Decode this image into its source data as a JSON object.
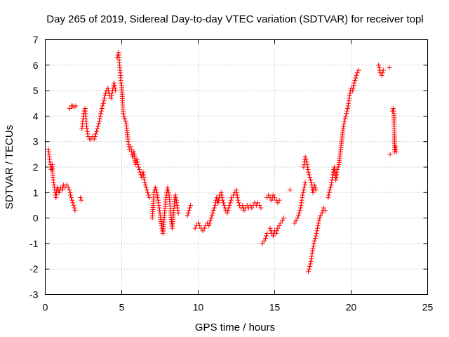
{
  "chart_data": {
    "type": "scatter",
    "title": "Day 265 of 2019, Sidereal Day-to-day VTEC variation (SDTVAR) for receiver topl",
    "xlabel": "GPS time / hours",
    "ylabel": "SDTVAR / TECUs",
    "xlim": [
      0,
      25
    ],
    "ylim": [
      -3,
      7
    ],
    "xticks": [
      0,
      5,
      10,
      15,
      20,
      25
    ],
    "yticks": [
      -3,
      -2,
      -1,
      0,
      1,
      2,
      3,
      4,
      5,
      6,
      7
    ],
    "grid": true,
    "marker": "+",
    "series": [
      {
        "name": "SDTVAR",
        "color": "#ff0000",
        "segments": [
          [
            [
              0.2,
              2.7
            ],
            [
              0.25,
              2.5
            ],
            [
              0.3,
              2.2
            ],
            [
              0.35,
              2.0
            ],
            [
              0.4,
              1.9
            ],
            [
              0.45,
              2.1
            ],
            [
              0.5,
              1.6
            ],
            [
              0.55,
              1.4
            ],
            [
              0.6,
              1.2
            ],
            [
              0.65,
              1.0
            ],
            [
              0.7,
              0.8
            ],
            [
              0.75,
              1.1
            ],
            [
              0.8,
              1.2
            ],
            [
              0.9,
              1.0
            ],
            [
              1.0,
              1.2
            ],
            [
              1.1,
              1.1
            ],
            [
              1.2,
              1.3
            ],
            [
              1.3,
              1.2
            ],
            [
              1.4,
              1.3
            ],
            [
              1.5,
              1.2
            ]
          ],
          [
            [
              1.6,
              1.1
            ],
            [
              1.65,
              0.9
            ],
            [
              1.7,
              0.8
            ],
            [
              1.75,
              0.7
            ],
            [
              1.8,
              0.6
            ],
            [
              1.85,
              0.5
            ],
            [
              1.9,
              0.4
            ],
            [
              1.95,
              0.3
            ]
          ],
          [
            [
              1.6,
              4.3
            ],
            [
              1.7,
              4.4
            ],
            [
              1.8,
              4.4
            ],
            [
              1.9,
              4.35
            ],
            [
              2.0,
              4.4
            ]
          ],
          [
            [
              2.3,
              0.8
            ],
            [
              2.35,
              0.7
            ]
          ],
          [
            [
              2.4,
              3.5
            ],
            [
              2.45,
              3.8
            ],
            [
              2.5,
              4.0
            ],
            [
              2.55,
              4.2
            ],
            [
              2.6,
              4.3
            ],
            [
              2.65,
              4.0
            ],
            [
              2.7,
              3.6
            ],
            [
              2.75,
              3.4
            ],
            [
              2.8,
              3.2
            ],
            [
              2.9,
              3.1
            ],
            [
              3.0,
              3.1
            ],
            [
              3.1,
              3.2
            ],
            [
              3.2,
              3.1
            ],
            [
              3.3,
              3.3
            ],
            [
              3.4,
              3.5
            ],
            [
              3.5,
              3.7
            ],
            [
              3.6,
              4.0
            ],
            [
              3.7,
              4.3
            ],
            [
              3.8,
              4.5
            ],
            [
              3.9,
              4.8
            ],
            [
              4.0,
              5.0
            ],
            [
              4.1,
              5.1
            ],
            [
              4.2,
              4.8
            ],
            [
              4.3,
              4.7
            ],
            [
              4.4,
              5.0
            ],
            [
              4.5,
              5.3
            ],
            [
              4.6,
              5.0
            ]
          ],
          [
            [
              4.7,
              6.3
            ],
            [
              4.75,
              6.4
            ],
            [
              4.8,
              6.5
            ],
            [
              4.85,
              6.1
            ],
            [
              4.9,
              5.7
            ],
            [
              4.95,
              5.3
            ],
            [
              5.0,
              5.2
            ],
            [
              5.05,
              4.6
            ],
            [
              5.1,
              4.1
            ],
            [
              5.2,
              3.9
            ],
            [
              5.3,
              3.7
            ],
            [
              5.4,
              3.1
            ],
            [
              5.5,
              2.7
            ],
            [
              5.6,
              2.8
            ],
            [
              5.7,
              2.4
            ],
            [
              5.8,
              2.6
            ],
            [
              5.9,
              2.1
            ],
            [
              6.0,
              2.3
            ],
            [
              6.1,
              2.0
            ],
            [
              6.2,
              1.8
            ],
            [
              6.3,
              1.6
            ],
            [
              6.4,
              1.8
            ],
            [
              6.5,
              1.4
            ],
            [
              6.6,
              1.2
            ],
            [
              6.7,
              1.0
            ],
            [
              6.8,
              0.8
            ]
          ],
          [
            [
              7.0,
              0.0
            ],
            [
              7.1,
              1.0
            ],
            [
              7.2,
              1.2
            ],
            [
              7.3,
              1.0
            ],
            [
              7.4,
              0.6
            ],
            [
              7.5,
              0.2
            ],
            [
              7.6,
              -0.3
            ],
            [
              7.7,
              -0.6
            ],
            [
              7.8,
              0.2
            ],
            [
              7.9,
              0.8
            ],
            [
              8.0,
              1.2
            ],
            [
              8.1,
              0.9
            ],
            [
              8.2,
              0.2
            ],
            [
              8.3,
              -0.4
            ],
            [
              8.4,
              0.3
            ],
            [
              8.5,
              0.9
            ],
            [
              8.6,
              0.6
            ],
            [
              8.7,
              0.2
            ]
          ],
          [
            [
              9.3,
              0.1
            ],
            [
              9.4,
              0.3
            ],
            [
              9.5,
              0.5
            ]
          ],
          [
            [
              9.8,
              -0.4
            ],
            [
              9.9,
              -0.3
            ],
            [
              10.0,
              -0.2
            ],
            [
              10.1,
              -0.3
            ],
            [
              10.2,
              -0.4
            ],
            [
              10.3,
              -0.5
            ],
            [
              10.4,
              -0.4
            ],
            [
              10.5,
              -0.3
            ],
            [
              10.6,
              -0.2
            ],
            [
              10.7,
              -0.3
            ],
            [
              10.8,
              -0.1
            ],
            [
              10.9,
              0.1
            ],
            [
              11.0,
              0.3
            ],
            [
              11.1,
              0.5
            ],
            [
              11.2,
              0.8
            ],
            [
              11.3,
              0.6
            ],
            [
              11.4,
              0.9
            ],
            [
              11.5,
              1.0
            ],
            [
              11.6,
              0.7
            ],
            [
              11.7,
              0.5
            ],
            [
              11.8,
              0.3
            ],
            [
              11.9,
              0.2
            ],
            [
              12.0,
              0.4
            ],
            [
              12.1,
              0.6
            ],
            [
              12.2,
              0.8
            ],
            [
              12.3,
              0.9
            ],
            [
              12.4,
              1.0
            ],
            [
              12.5,
              1.1
            ],
            [
              12.6,
              0.7
            ],
            [
              12.7,
              0.5
            ],
            [
              12.8,
              0.4
            ],
            [
              12.9,
              0.5
            ],
            [
              13.0,
              0.3
            ],
            [
              13.1,
              0.4
            ],
            [
              13.2,
              0.5
            ],
            [
              13.3,
              0.4
            ],
            [
              13.4,
              0.5
            ],
            [
              13.5,
              0.4
            ],
            [
              13.6,
              0.5
            ],
            [
              13.7,
              0.6
            ],
            [
              13.8,
              0.5
            ],
            [
              13.9,
              0.6
            ],
            [
              14.0,
              0.5
            ],
            [
              14.1,
              0.4
            ]
          ],
          [
            [
              14.2,
              -1.0
            ],
            [
              14.3,
              -0.9
            ],
            [
              14.4,
              -0.8
            ],
            [
              14.5,
              -0.6
            ]
          ],
          [
            [
              14.5,
              0.8
            ],
            [
              14.6,
              0.9
            ],
            [
              14.7,
              0.8
            ],
            [
              14.8,
              0.7
            ],
            [
              14.9,
              0.9
            ],
            [
              15.0,
              0.8
            ],
            [
              15.1,
              0.7
            ],
            [
              15.2,
              0.6
            ],
            [
              15.3,
              0.7
            ]
          ],
          [
            [
              14.7,
              -0.4
            ],
            [
              14.8,
              -0.6
            ],
            [
              14.9,
              -0.7
            ],
            [
              15.0,
              -0.5
            ],
            [
              15.1,
              -0.6
            ],
            [
              15.2,
              -0.4
            ],
            [
              15.3,
              -0.3
            ],
            [
              15.4,
              -0.2
            ],
            [
              15.5,
              -0.1
            ],
            [
              15.6,
              0.0
            ]
          ],
          [
            [
              16.0,
              1.1
            ]
          ],
          [
            [
              16.3,
              -0.2
            ],
            [
              16.4,
              -0.1
            ],
            [
              16.5,
              0.0
            ],
            [
              16.6,
              0.2
            ],
            [
              16.7,
              0.4
            ],
            [
              16.8,
              0.8
            ],
            [
              16.9,
              1.1
            ],
            [
              17.0,
              1.4
            ]
          ],
          [
            [
              16.9,
              2.0
            ],
            [
              17.0,
              2.4
            ],
            [
              17.1,
              2.2
            ],
            [
              17.2,
              1.8
            ],
            [
              17.3,
              1.6
            ],
            [
              17.4,
              1.4
            ],
            [
              17.5,
              1.0
            ],
            [
              17.6,
              1.3
            ],
            [
              17.7,
              1.1
            ]
          ],
          [
            [
              17.2,
              -2.1
            ],
            [
              17.3,
              -1.9
            ],
            [
              17.4,
              -1.6
            ],
            [
              17.5,
              -1.2
            ],
            [
              17.6,
              -0.9
            ],
            [
              17.7,
              -0.7
            ],
            [
              17.8,
              -0.4
            ],
            [
              17.9,
              -0.1
            ],
            [
              18.0,
              0.1
            ],
            [
              18.1,
              0.2
            ],
            [
              18.2,
              0.4
            ],
            [
              18.3,
              0.3
            ]
          ],
          [
            [
              18.5,
              0.8
            ],
            [
              18.6,
              1.1
            ],
            [
              18.7,
              1.3
            ],
            [
              18.8,
              1.7
            ],
            [
              18.9,
              2.0
            ],
            [
              19.0,
              1.5
            ],
            [
              19.1,
              1.9
            ],
            [
              19.2,
              2.1
            ],
            [
              19.3,
              2.6
            ],
            [
              19.4,
              3.1
            ],
            [
              19.5,
              3.6
            ],
            [
              19.6,
              3.9
            ],
            [
              19.7,
              4.1
            ],
            [
              19.8,
              4.4
            ],
            [
              19.9,
              4.8
            ],
            [
              20.0,
              5.1
            ],
            [
              20.1,
              5.0
            ],
            [
              20.2,
              5.3
            ],
            [
              20.3,
              5.5
            ],
            [
              20.4,
              5.7
            ],
            [
              20.5,
              5.8
            ]
          ],
          [
            [
              21.8,
              6.0
            ],
            [
              21.9,
              5.7
            ],
            [
              22.0,
              5.6
            ],
            [
              22.1,
              5.8
            ]
          ],
          [
            [
              22.5,
              5.9
            ]
          ],
          [
            [
              22.55,
              2.5
            ]
          ],
          [
            [
              22.7,
              4.2
            ],
            [
              22.75,
              4.3
            ],
            [
              22.8,
              4.1
            ],
            [
              22.85,
              2.6
            ],
            [
              22.9,
              2.8
            ],
            [
              22.95,
              2.6
            ]
          ]
        ]
      }
    ]
  }
}
